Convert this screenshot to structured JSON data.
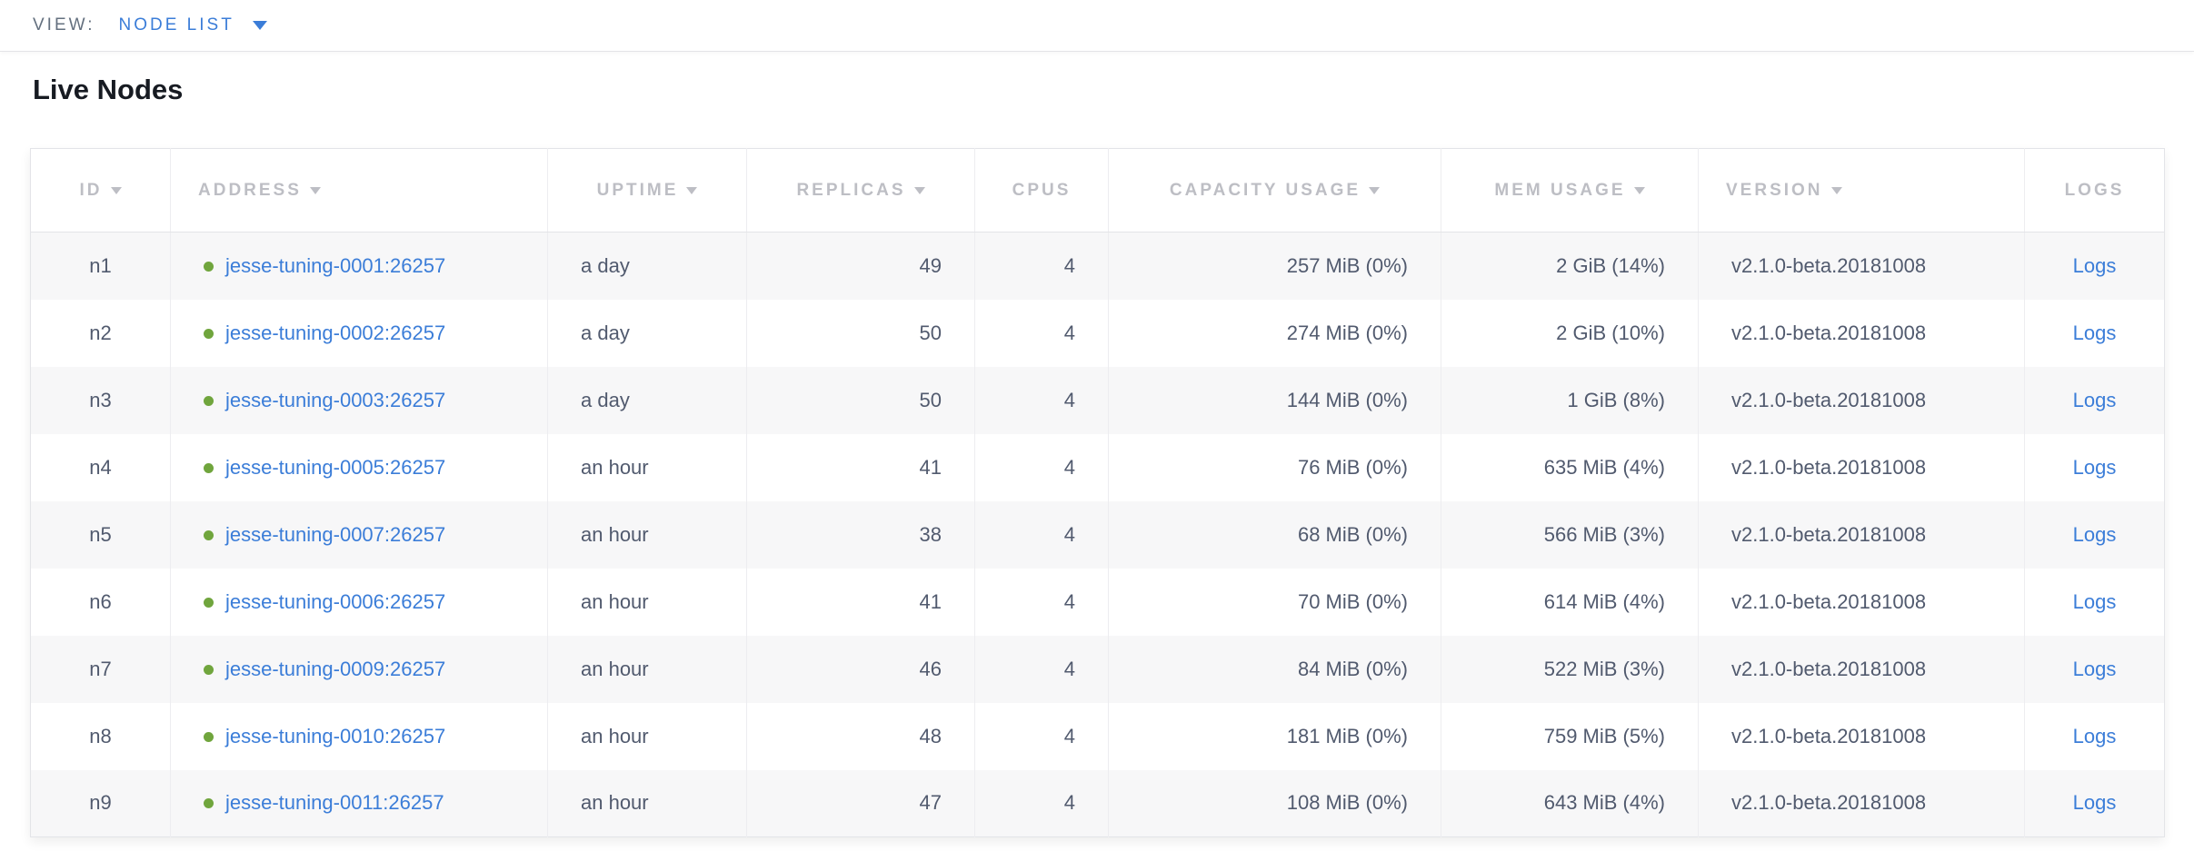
{
  "toolbar": {
    "view_label": "VIEW:",
    "view_value": "NODE LIST"
  },
  "page": {
    "title": "Live Nodes"
  },
  "colors": {
    "link_blue": "#3b7dd8",
    "status_green": "#70a53d",
    "header_gray": "#bdbec4",
    "cell_text": "#515a6e",
    "row_stripe": "#f7f7f8"
  },
  "icons": {
    "view_dropdown_caret": "chevron-down-icon",
    "sort_caret": "sort-desc-icon",
    "node_status": "status-dot-icon"
  },
  "table": {
    "columns": [
      {
        "key": "id",
        "label": "ID",
        "sortable": true,
        "align": "center",
        "header_align": "center"
      },
      {
        "key": "address",
        "label": "ADDRESS",
        "sortable": true,
        "align": "left",
        "header_align": "left"
      },
      {
        "key": "uptime",
        "label": "UPTIME",
        "sortable": true,
        "align": "left",
        "header_align": "center"
      },
      {
        "key": "replicas",
        "label": "REPLICAS",
        "sortable": true,
        "align": "right",
        "header_align": "center"
      },
      {
        "key": "cpus",
        "label": "CPUS",
        "sortable": false,
        "align": "right",
        "header_align": "center"
      },
      {
        "key": "capacity",
        "label": "CAPACITY USAGE",
        "sortable": true,
        "align": "right",
        "header_align": "center"
      },
      {
        "key": "mem",
        "label": "MEM USAGE",
        "sortable": true,
        "align": "right",
        "header_align": "center"
      },
      {
        "key": "version",
        "label": "VERSION",
        "sortable": true,
        "align": "left",
        "header_align": "left"
      },
      {
        "key": "logs",
        "label": "LOGS",
        "sortable": false,
        "align": "center",
        "header_align": "center"
      }
    ],
    "rows": [
      {
        "id": "n1",
        "address": "jesse-tuning-0001:26257",
        "uptime": "a day",
        "replicas": "49",
        "cpus": "4",
        "capacity": "257 MiB (0%)",
        "mem": "2 GiB (14%)",
        "version": "v2.1.0-beta.20181008",
        "logs": "Logs"
      },
      {
        "id": "n2",
        "address": "jesse-tuning-0002:26257",
        "uptime": "a day",
        "replicas": "50",
        "cpus": "4",
        "capacity": "274 MiB (0%)",
        "mem": "2 GiB (10%)",
        "version": "v2.1.0-beta.20181008",
        "logs": "Logs"
      },
      {
        "id": "n3",
        "address": "jesse-tuning-0003:26257",
        "uptime": "a day",
        "replicas": "50",
        "cpus": "4",
        "capacity": "144 MiB (0%)",
        "mem": "1 GiB (8%)",
        "version": "v2.1.0-beta.20181008",
        "logs": "Logs"
      },
      {
        "id": "n4",
        "address": "jesse-tuning-0005:26257",
        "uptime": "an hour",
        "replicas": "41",
        "cpus": "4",
        "capacity": "76 MiB (0%)",
        "mem": "635 MiB (4%)",
        "version": "v2.1.0-beta.20181008",
        "logs": "Logs"
      },
      {
        "id": "n5",
        "address": "jesse-tuning-0007:26257",
        "uptime": "an hour",
        "replicas": "38",
        "cpus": "4",
        "capacity": "68 MiB (0%)",
        "mem": "566 MiB (3%)",
        "version": "v2.1.0-beta.20181008",
        "logs": "Logs"
      },
      {
        "id": "n6",
        "address": "jesse-tuning-0006:26257",
        "uptime": "an hour",
        "replicas": "41",
        "cpus": "4",
        "capacity": "70 MiB (0%)",
        "mem": "614 MiB (4%)",
        "version": "v2.1.0-beta.20181008",
        "logs": "Logs"
      },
      {
        "id": "n7",
        "address": "jesse-tuning-0009:26257",
        "uptime": "an hour",
        "replicas": "46",
        "cpus": "4",
        "capacity": "84 MiB (0%)",
        "mem": "522 MiB (3%)",
        "version": "v2.1.0-beta.20181008",
        "logs": "Logs"
      },
      {
        "id": "n8",
        "address": "jesse-tuning-0010:26257",
        "uptime": "an hour",
        "replicas": "48",
        "cpus": "4",
        "capacity": "181 MiB (0%)",
        "mem": "759 MiB (5%)",
        "version": "v2.1.0-beta.20181008",
        "logs": "Logs"
      },
      {
        "id": "n9",
        "address": "jesse-tuning-0011:26257",
        "uptime": "an hour",
        "replicas": "47",
        "cpus": "4",
        "capacity": "108 MiB (0%)",
        "mem": "643 MiB (4%)",
        "version": "v2.1.0-beta.20181008",
        "logs": "Logs"
      }
    ]
  }
}
